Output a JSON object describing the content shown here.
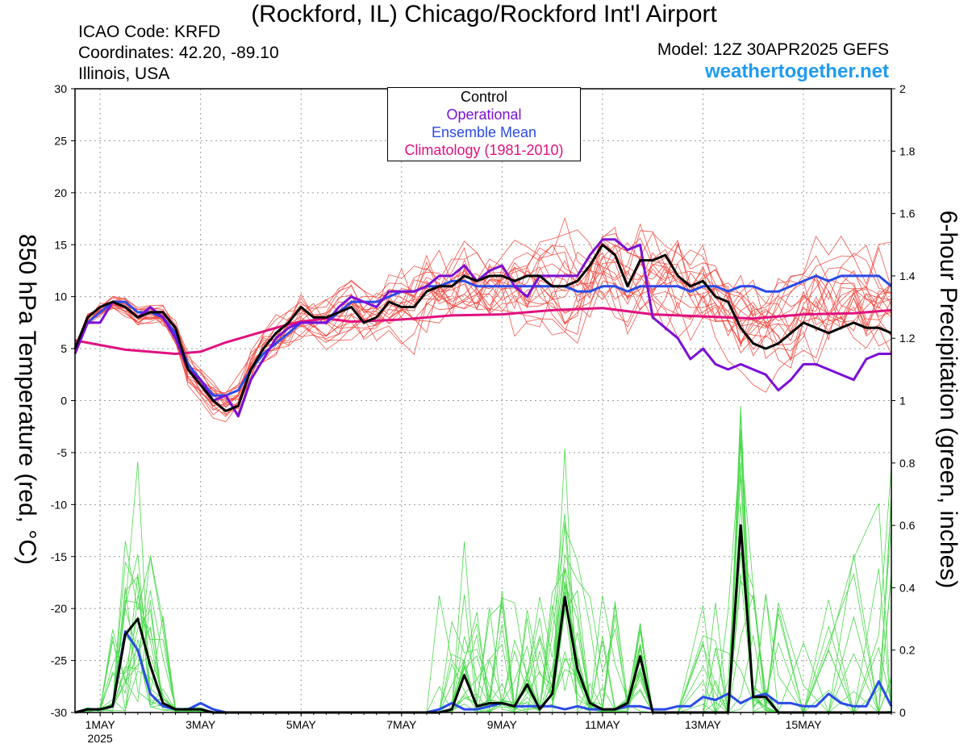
{
  "header": {
    "title": "(Rockford, IL) Chicago/Rockford Int'l Airport",
    "icao": "ICAO Code: KRFD",
    "coords": "Coordinates: 42.20, -89.10",
    "region": "Illinois, USA",
    "model": "Model: 12Z 30APR2025 GEFS",
    "site": "weathertogether.net"
  },
  "colors": {
    "control": "#000000",
    "operational": "#7b0fd6",
    "ensemble_mean": "#2a4be8",
    "climatology": "#e0117f",
    "members_temp": "#f0443a",
    "members_precip": "#4cd94c",
    "site": "#1e9bf0"
  },
  "legend": {
    "control": "Control",
    "operational": "Operational",
    "ensemble_mean": "Ensemble Mean",
    "climatology": "Climatology (1981-2010)"
  },
  "chart_data": {
    "type": "line",
    "xlabel_year": "2025",
    "x_unit": "days since 2025-04-30 12Z",
    "x_range": [
      0.5,
      16.75
    ],
    "x_ticks": [
      {
        "day": 1,
        "label": "1MAY"
      },
      {
        "day": 3,
        "label": "3MAY"
      },
      {
        "day": 5,
        "label": "5MAY"
      },
      {
        "day": 7,
        "label": "7MAY"
      },
      {
        "day": 9,
        "label": "9MAY"
      },
      {
        "day": 11,
        "label": "11MAY"
      },
      {
        "day": 13,
        "label": "13MAY"
      },
      {
        "day": 15,
        "label": "15MAY"
      }
    ],
    "ylabel_left": "850 hPa Temperature (red, °C)",
    "ylabel_right": "6-hour Precipitation (green, inches)",
    "ylim_left": [
      -30,
      30
    ],
    "ylim_right": [
      0,
      2
    ],
    "yticks_left": [
      30,
      25,
      20,
      15,
      10,
      5,
      0,
      -5,
      -10,
      -15,
      -20,
      -25,
      -30
    ],
    "yticks_right": [
      "2",
      "1.8",
      "1.6",
      "1.4",
      "1.2",
      "1",
      "0.8",
      "0.6",
      "0.4",
      "0.2",
      "0"
    ],
    "grid": true,
    "legend_position": "top-center",
    "series": [
      {
        "name": "Control",
        "axis": "left",
        "kind": "temperature",
        "x": [
          0.5,
          0.75,
          1,
          1.25,
          1.5,
          1.75,
          2,
          2.25,
          2.5,
          2.75,
          3,
          3.25,
          3.5,
          3.75,
          4,
          4.25,
          4.5,
          4.75,
          5,
          5.25,
          5.5,
          5.75,
          6,
          6.25,
          6.5,
          6.75,
          7,
          7.25,
          7.5,
          7.75,
          8,
          8.25,
          8.5,
          8.75,
          9,
          9.25,
          9.5,
          9.75,
          10,
          10.25,
          10.5,
          10.75,
          11,
          11.25,
          11.5,
          11.75,
          12,
          12.25,
          12.5,
          12.75,
          13,
          13.25,
          13.5,
          13.75,
          14,
          14.25,
          14.5,
          14.75,
          15,
          15.25,
          15.5,
          15.75,
          16,
          16.25,
          16.5,
          16.75
        ],
        "y": [
          5,
          8,
          9,
          9.5,
          9,
          8,
          8.5,
          8.5,
          7,
          3,
          1.5,
          0,
          -1,
          -0.5,
          3,
          5,
          6.5,
          7.5,
          9,
          8,
          8,
          8.5,
          9,
          7.5,
          8,
          9.5,
          9,
          9,
          10.5,
          11,
          11,
          12,
          11.5,
          12,
          12,
          11.5,
          12,
          12,
          11,
          11,
          11.5,
          13,
          15,
          14,
          11,
          13.5,
          13.5,
          14,
          12,
          11,
          11.5,
          10,
          9.5,
          7,
          5.5,
          5,
          5.5,
          6.5,
          7.5,
          7,
          6.5,
          7,
          7.5,
          7,
          7,
          6.5
        ]
      },
      {
        "name": "Operational",
        "axis": "left",
        "kind": "temperature",
        "x": [
          0.5,
          0.75,
          1,
          1.25,
          1.5,
          1.75,
          2,
          2.25,
          2.5,
          2.75,
          3,
          3.25,
          3.5,
          3.75,
          4,
          4.25,
          4.5,
          4.75,
          5,
          5.25,
          5.5,
          5.75,
          6,
          6.25,
          6.5,
          6.75,
          7,
          7.25,
          7.5,
          7.75,
          8,
          8.25,
          8.5,
          8.75,
          9,
          9.25,
          9.5,
          9.75,
          10,
          10.25,
          10.5,
          10.75,
          11,
          11.25,
          11.5,
          11.75,
          12,
          12.25,
          12.5,
          12.75,
          13,
          13.25,
          13.5,
          13.75,
          14,
          14.25,
          14.5,
          14.75,
          15,
          15.25,
          15.5,
          15.75,
          16,
          16.25,
          16.5,
          16.75
        ],
        "y": [
          4.5,
          7.5,
          7.5,
          9.5,
          9,
          8,
          9,
          8,
          6,
          3,
          2,
          0,
          0.5,
          -1.5,
          2,
          4,
          6,
          7,
          7.5,
          7.5,
          7.5,
          9,
          10,
          9.5,
          9,
          10.5,
          10.5,
          10.5,
          11,
          12,
          12,
          13,
          11.5,
          12.5,
          13,
          11,
          10,
          12,
          12,
          12,
          12,
          14,
          15.5,
          15.5,
          14.5,
          15,
          8,
          7,
          6,
          4,
          5,
          3.5,
          3,
          3.5,
          3,
          2.5,
          1,
          2,
          3.5,
          3.5,
          3,
          2.5,
          2,
          4,
          4.5,
          4.5
        ]
      },
      {
        "name": "Ensemble Mean",
        "axis": "left",
        "kind": "temperature",
        "x": [
          0.5,
          0.75,
          1,
          1.25,
          1.5,
          1.75,
          2,
          2.25,
          2.5,
          2.75,
          3,
          3.25,
          3.5,
          3.75,
          4,
          4.25,
          4.5,
          4.75,
          5,
          5.25,
          5.5,
          5.75,
          6,
          6.25,
          6.5,
          6.75,
          7,
          7.25,
          7.5,
          7.75,
          8,
          8.25,
          8.5,
          8.75,
          9,
          9.25,
          9.5,
          9.75,
          10,
          10.25,
          10.5,
          10.75,
          11,
          11.25,
          11.5,
          11.75,
          12,
          12.25,
          12.5,
          12.75,
          13,
          13.25,
          13.5,
          13.75,
          14,
          14.25,
          14.5,
          14.75,
          15,
          15.25,
          15.5,
          15.75,
          16,
          16.25,
          16.5,
          16.75
        ],
        "y": [
          5,
          7.5,
          8.5,
          9.5,
          9.5,
          8.5,
          8.5,
          8,
          6.5,
          3.5,
          2,
          0.5,
          0.5,
          1,
          3,
          4.5,
          5.5,
          6.5,
          7.5,
          7.5,
          7.5,
          8.5,
          9.5,
          9.5,
          9.5,
          10,
          10.5,
          10.5,
          11,
          11,
          11.5,
          11.5,
          11,
          11,
          11,
          11,
          11,
          11,
          11,
          11,
          10.5,
          10.5,
          11,
          11,
          10.5,
          11,
          11,
          11,
          11,
          10.5,
          11,
          11,
          10.5,
          11,
          11,
          10.5,
          10.5,
          11,
          11.5,
          12,
          11.5,
          12,
          12,
          12,
          12,
          11
        ]
      },
      {
        "name": "Climatology (1981-2010)",
        "axis": "left",
        "kind": "temperature",
        "x": [
          0.5,
          1.5,
          2.5,
          3,
          3.5,
          4,
          4.5,
          5,
          5.5,
          6,
          7,
          8,
          9,
          10,
          11,
          12,
          13,
          14,
          15,
          16,
          16.75
        ],
        "y": [
          5.8,
          4.9,
          4.5,
          4.7,
          5.6,
          6.3,
          7.0,
          7.6,
          7.9,
          7.6,
          7.8,
          8.2,
          8.3,
          8.7,
          8.9,
          8.3,
          8.1,
          7.9,
          8.3,
          8.4,
          8.7
        ]
      },
      {
        "name": "Control",
        "axis": "right",
        "kind": "precipitation",
        "x": [
          0.5,
          0.75,
          1,
          1.25,
          1.5,
          1.75,
          2,
          2.25,
          2.5,
          2.75,
          3,
          3.25,
          3.5,
          3.75,
          4,
          4.5,
          5,
          5.5,
          6,
          6.5,
          7,
          7.25,
          7.5,
          7.75,
          8,
          8.25,
          8.5,
          8.75,
          9,
          9.25,
          9.5,
          9.75,
          10,
          10.25,
          10.5,
          10.75,
          11,
          11.25,
          11.5,
          11.75,
          12,
          12.5,
          13,
          13.25,
          13.5,
          13.75,
          14,
          14.25,
          14.5,
          15,
          15.5,
          16,
          16.5,
          16.75
        ],
        "y": [
          0,
          0.01,
          0.01,
          0.02,
          0.25,
          0.3,
          0.15,
          0.03,
          0.01,
          0.01,
          0.01,
          0,
          0,
          0,
          0,
          0,
          0,
          0,
          0,
          0,
          0,
          0,
          0,
          0,
          0.01,
          0.12,
          0.02,
          0.03,
          0.03,
          0.02,
          0.09,
          0.01,
          0.06,
          0.37,
          0.14,
          0.03,
          0.01,
          0.01,
          0.03,
          0.18,
          0,
          0,
          0,
          0,
          0,
          0.6,
          0.05,
          0.05,
          0,
          0,
          0,
          0,
          0,
          0
        ]
      },
      {
        "name": "Ensemble Mean",
        "axis": "right",
        "kind": "precipitation",
        "x": [
          0.5,
          0.75,
          1,
          1.25,
          1.5,
          1.75,
          2,
          2.25,
          2.5,
          2.75,
          3,
          3.25,
          3.5,
          3.75,
          4,
          4.5,
          5,
          5.5,
          6,
          6.5,
          7,
          7.5,
          7.75,
          8,
          8.25,
          8.5,
          8.75,
          9,
          9.25,
          9.5,
          9.75,
          10,
          10.25,
          10.5,
          10.75,
          11,
          11.25,
          11.5,
          11.75,
          12,
          12.25,
          12.5,
          12.75,
          13,
          13.25,
          13.5,
          13.75,
          14,
          14.25,
          14.5,
          14.75,
          15,
          15.25,
          15.5,
          15.75,
          16,
          16.25,
          16.5,
          16.75
        ],
        "y": [
          0,
          0.01,
          0.01,
          0.02,
          0.26,
          0.2,
          0.06,
          0.02,
          0.01,
          0.01,
          0.03,
          0.01,
          0,
          0,
          0,
          0,
          0,
          0,
          0,
          0,
          0,
          0,
          0.01,
          0.03,
          0.01,
          0.01,
          0.02,
          0.03,
          0.02,
          0.02,
          0.02,
          0.02,
          0.01,
          0.02,
          0.01,
          0.01,
          0.01,
          0.02,
          0.02,
          0.01,
          0.01,
          0.02,
          0.02,
          0.05,
          0.04,
          0.06,
          0.03,
          0.05,
          0.06,
          0.03,
          0.03,
          0.02,
          0.02,
          0.06,
          0.03,
          0.02,
          0.02,
          0.1,
          0.02
        ]
      }
    ]
  }
}
